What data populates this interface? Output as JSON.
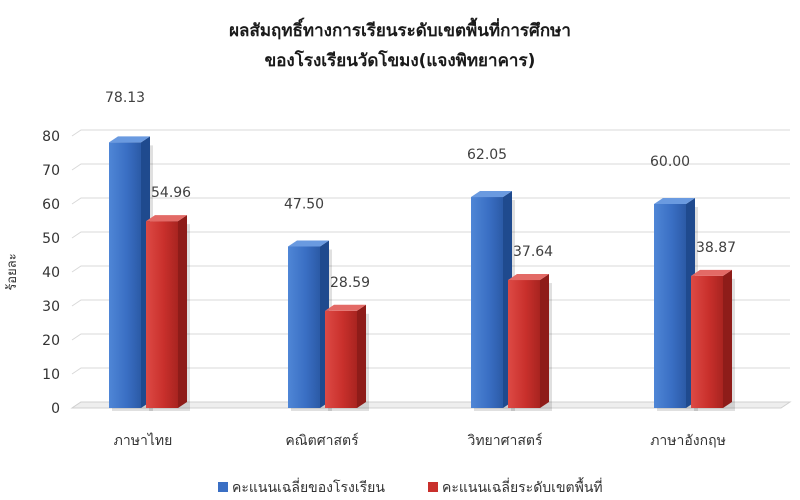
{
  "chart_data": {
    "type": "bar",
    "title_lines": [
      "ผลสัมฤทธิ์ทางการเรียนระดับเขตพื้นที่การศึกษา",
      "ของโรงเรียนวัดโขมง(แจงพิทยาคาร)"
    ],
    "ylabel": "ร้อยละ",
    "xlabel": "",
    "ylim": [
      0,
      80
    ],
    "yticks": [
      0,
      10,
      20,
      30,
      40,
      50,
      60,
      70,
      80
    ],
    "categories": [
      "ภาษาไทย",
      "คณิตศาสตร์",
      "วิทยาศาสตร์",
      "ภาษาอังกฤษ"
    ],
    "series": [
      {
        "name": "คะแนนเฉลี่ยของโรงเรียน",
        "values": [
          78.13,
          47.5,
          62.05,
          60.0
        ],
        "labels": [
          "78.13",
          "47.50",
          "62.05",
          "60.00"
        ],
        "color": "#3a6fc4"
      },
      {
        "name": "คะแนนเฉลี่ยระดับเขตพื้นที่",
        "values": [
          54.96,
          28.59,
          37.64,
          38.87
        ],
        "labels": [
          "54.96",
          "28.59",
          "37.64",
          "38.87"
        ],
        "color": "#c9302c"
      }
    ],
    "grid": true,
    "legend_position": "bottom",
    "style": "3d-column"
  }
}
